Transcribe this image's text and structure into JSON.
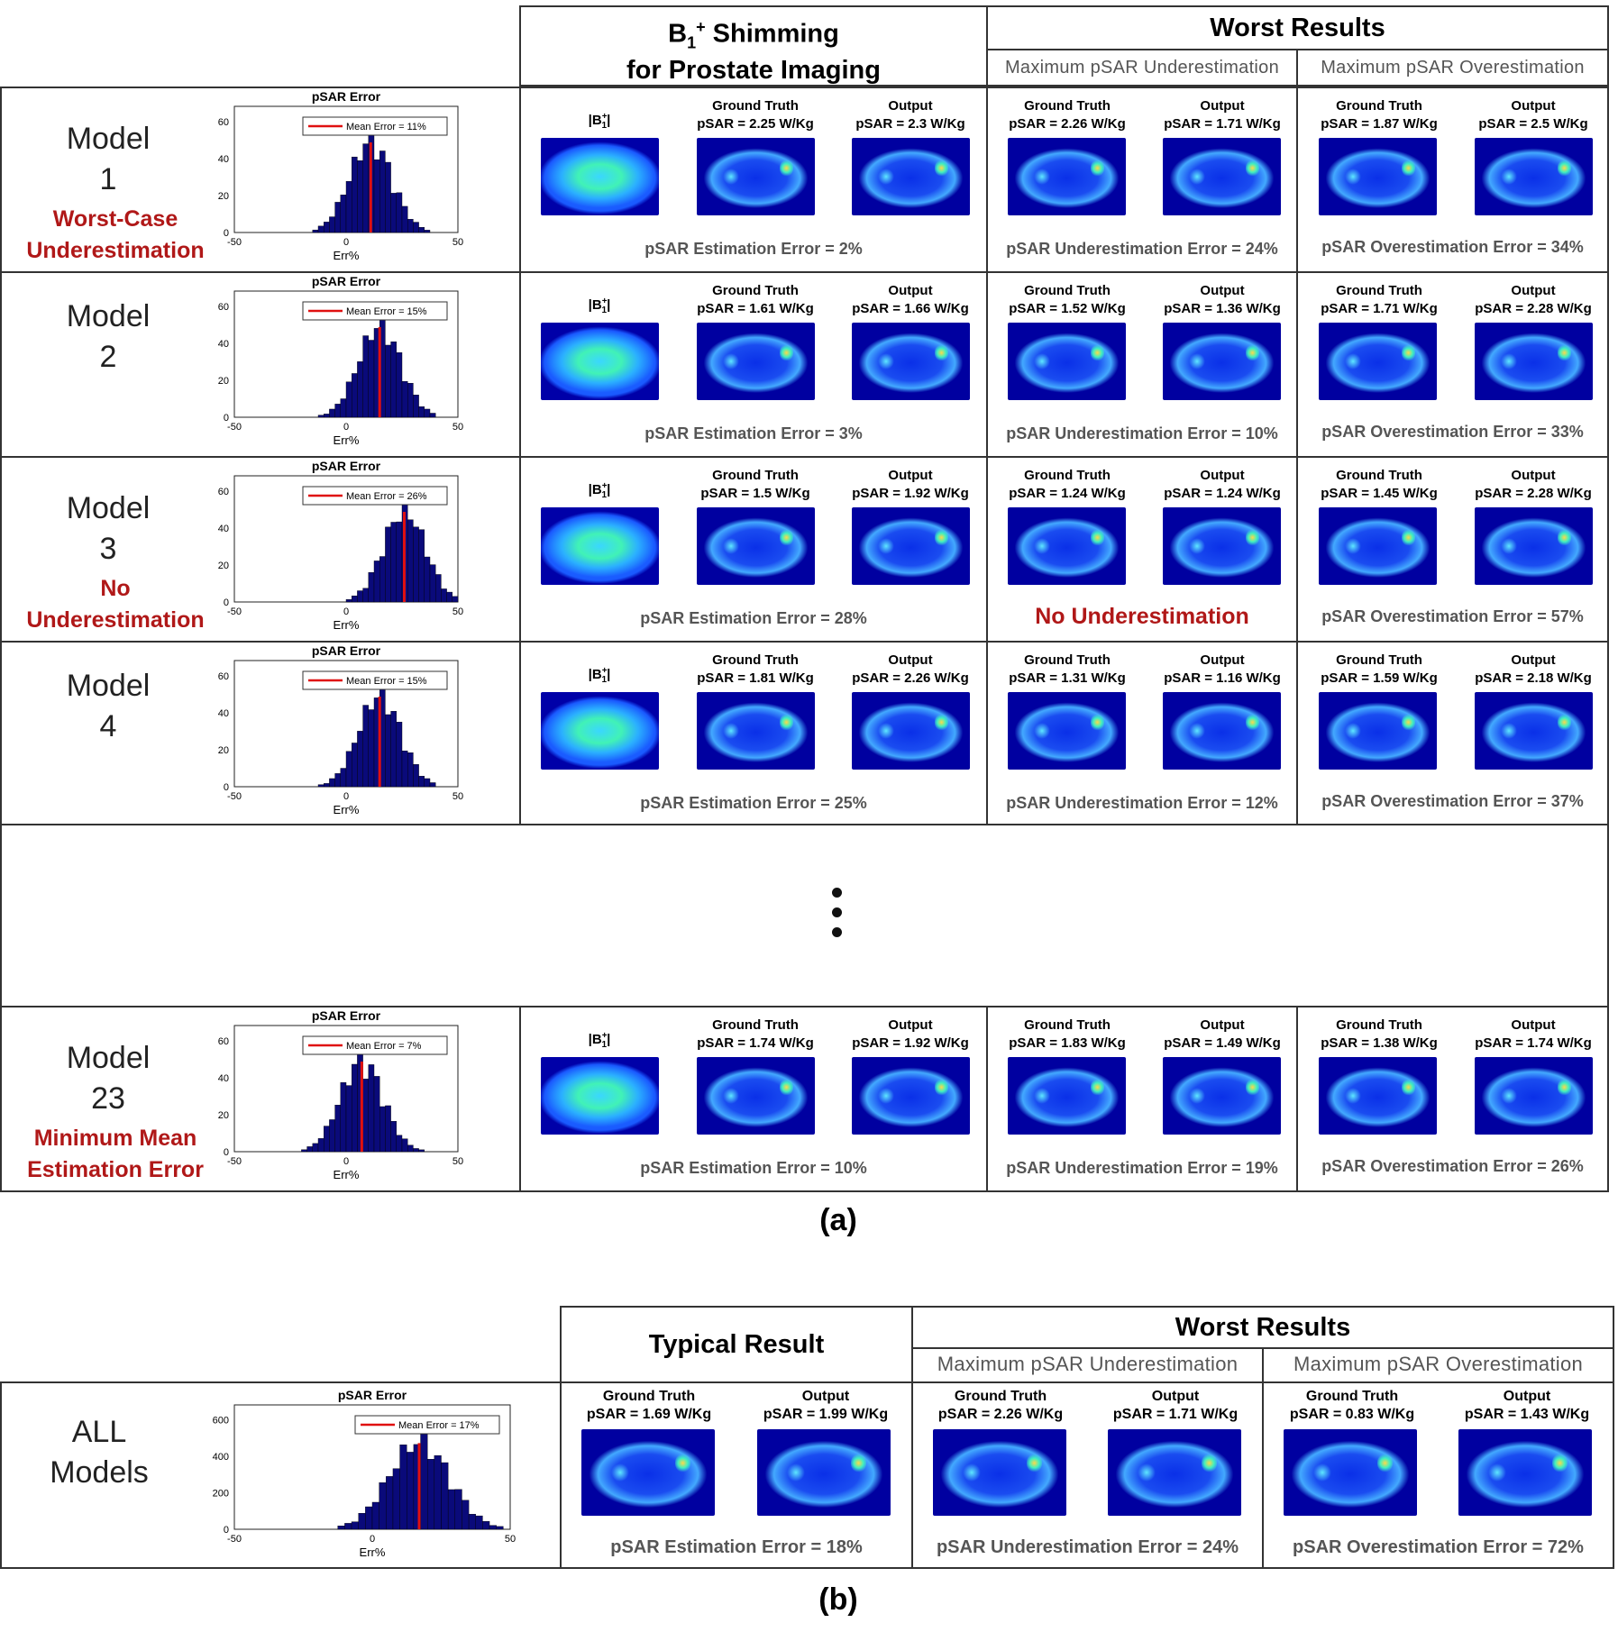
{
  "part_a": {
    "header": {
      "shimming_line1_main": "B",
      "shimming_line1_sub": "1",
      "shimming_line1_sup": "+",
      "shimming_line1_rest": " Shimming",
      "shimming_line2": "for Prostate Imaging",
      "worst_results": "Worst Results",
      "max_under": "Maximum pSAR Underestimation",
      "max_over": "Maximum pSAR Overestimation"
    },
    "rows": [
      {
        "model_word": "Model",
        "model_num": "1",
        "note_line1": "Worst-Case",
        "note_line2": "Underestimation",
        "hist_title": "pSAR Error",
        "legend": "Mean Error = 11%",
        "xlabel": "Err%",
        "mean": 11,
        "yticks": [
          "0",
          "20",
          "40",
          "60"
        ],
        "b1_label": "|B1+|",
        "gt_label": "Ground Truth",
        "out_label": "Output",
        "shim_gt": "pSAR = 2.25 W/Kg",
        "shim_out": "pSAR = 2.3 W/Kg",
        "shim_err": "pSAR Estimation  Error = 2%",
        "under_gt": "pSAR = 2.26 W/Kg",
        "under_out": "pSAR = 1.71 W/Kg",
        "under_err": "pSAR Underestimation Error = 24%",
        "over_gt": "pSAR = 1.87 W/Kg",
        "over_out": "pSAR = 2.5 W/Kg",
        "over_err": "pSAR Overestimation Error = 34%"
      },
      {
        "model_word": "Model",
        "model_num": "2",
        "note_line1": "",
        "note_line2": "",
        "hist_title": "pSAR Error",
        "legend": "Mean Error = 15%",
        "xlabel": "Err%",
        "mean": 15,
        "yticks": [
          "0",
          "20",
          "40",
          "60"
        ],
        "b1_label": "|B1+|",
        "gt_label": "Ground Truth",
        "out_label": "Output",
        "shim_gt": "pSAR = 1.61 W/Kg",
        "shim_out": "pSAR = 1.66 W/Kg",
        "shim_err": "pSAR Estimation  Error = 3%",
        "under_gt": "pSAR = 1.52 W/Kg",
        "under_out": "pSAR = 1.36 W/Kg",
        "under_err": "pSAR Underestimation Error = 10%",
        "over_gt": "pSAR = 1.71 W/Kg",
        "over_out": "pSAR = 2.28 W/Kg",
        "over_err": "pSAR Overestimation Error = 33%"
      },
      {
        "model_word": "Model",
        "model_num": "3",
        "note_line1": "No",
        "note_line2": "Underestimation",
        "hist_title": "pSAR Error",
        "legend": "Mean Error = 26%",
        "xlabel": "Err%",
        "mean": 26,
        "yticks": [
          "0",
          "20",
          "40",
          "60"
        ],
        "b1_label": "|B1+|",
        "gt_label": "Ground Truth",
        "out_label": "Output",
        "shim_gt": "pSAR = 1.5 W/Kg",
        "shim_out": "pSAR = 1.92 W/Kg",
        "shim_err": "pSAR Estimation  Error = 28%",
        "under_gt": "pSAR = 1.24 W/Kg",
        "under_out": "pSAR = 1.24 W/Kg",
        "under_err": "No Underestimation",
        "over_gt": "pSAR = 1.45 W/Kg",
        "over_out": "pSAR = 2.28 W/Kg",
        "over_err": "pSAR Overestimation Error = 57%"
      },
      {
        "model_word": "Model",
        "model_num": "4",
        "note_line1": "",
        "note_line2": "",
        "hist_title": "pSAR Error",
        "legend": "Mean Error = 15%",
        "xlabel": "Err%",
        "mean": 15,
        "yticks": [
          "0",
          "20",
          "40",
          "60"
        ],
        "b1_label": "|B1+|",
        "gt_label": "Ground Truth",
        "out_label": "Output",
        "shim_gt": "pSAR = 1.81 W/Kg",
        "shim_out": "pSAR = 2.26 W/Kg",
        "shim_err": "pSAR Estimation  Error = 25%",
        "under_gt": "pSAR = 1.31 W/Kg",
        "under_out": "pSAR = 1.16 W/Kg",
        "under_err": "pSAR Underestimation Error = 12%",
        "over_gt": "pSAR = 1.59 W/Kg",
        "over_out": "pSAR = 2.18 W/Kg",
        "over_err": "pSAR Overestimation Error = 37%"
      },
      {
        "model_word": "Model",
        "model_num": "23",
        "note_line1": "Minimum Mean",
        "note_line2": "Estimation Error",
        "hist_title": "pSAR Error",
        "legend": "Mean Error = 7%",
        "xlabel": "Err%",
        "mean": 7,
        "yticks": [
          "0",
          "20",
          "40",
          "60"
        ],
        "b1_label": "|B1+|",
        "gt_label": "Ground Truth",
        "out_label": "Output",
        "shim_gt": "pSAR = 1.74 W/Kg",
        "shim_out": "pSAR = 1.92 W/Kg",
        "shim_err": "pSAR Estimation  Error = 10%",
        "under_gt": "pSAR = 1.83 W/Kg",
        "under_out": "pSAR = 1.49 W/Kg",
        "under_err": "pSAR Underestimation Error = 19%",
        "over_gt": "pSAR = 1.38 W/Kg",
        "over_out": "pSAR = 1.74 W/Kg",
        "over_err": "pSAR Overestimation Error = 26%"
      }
    ],
    "caption": "(a)"
  },
  "part_b": {
    "typical": "Typical Result",
    "worst_results": "Worst Results",
    "max_under": "Maximum pSAR Underestimation",
    "max_over": "Maximum pSAR Overestimation",
    "label_line1": "ALL",
    "label_line2": "Models",
    "hist_title": "pSAR Error",
    "legend": "Mean Error = 17%",
    "xlabel": "Err%",
    "mean": 17,
    "yticks": [
      "0",
      "200",
      "400",
      "600"
    ],
    "gt_label": "Ground Truth",
    "out_label": "Output",
    "typ_gt": "pSAR = 1.69 W/Kg",
    "typ_out": "pSAR = 1.99 W/Kg",
    "typ_err": "pSAR Estimation Error = 18%",
    "under_gt": "pSAR = 2.26 W/Kg",
    "under_out": "pSAR = 1.71 W/Kg",
    "under_err": "pSAR Underestimation Error = 24%",
    "over_gt": "pSAR = 0.83 W/Kg",
    "over_out": "pSAR = 1.43 W/Kg",
    "over_err": "pSAR Overestimation Error = 72%",
    "caption": "(b)"
  },
  "hist_xticks": [
    "-50",
    "0",
    "50"
  ],
  "colors": {
    "accent_red": "#b01818",
    "bar_fill": "#0a0a7a",
    "mean_line": "#e01010"
  }
}
